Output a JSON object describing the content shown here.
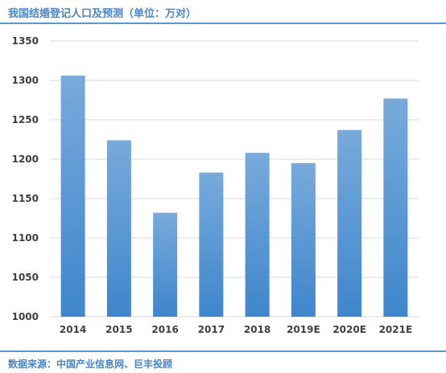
{
  "header": {
    "title": "我国结婚登记人口及预测（单位：万对）"
  },
  "footer": {
    "source": "数据来源：中国产业信息网、巨丰投顾"
  },
  "colors": {
    "accent": "#4a86c6",
    "bar_top": "#78aadb",
    "bar_bottom": "#3f86cc",
    "grid": "#d9d9d9"
  },
  "chart_data": {
    "type": "bar",
    "title": "我国结婚登记人口及预测（单位：万对）",
    "categories": [
      "2014",
      "2015",
      "2016",
      "2017",
      "2018",
      "2019E",
      "2020E",
      "2021E"
    ],
    "values": [
      1306,
      1224,
      1132,
      1183,
      1208,
      1195,
      1237,
      1277
    ],
    "ylim": [
      1000,
      1350
    ],
    "yticks": [
      1000,
      1050,
      1100,
      1150,
      1200,
      1250,
      1300,
      1350
    ],
    "grid": true,
    "legend": "none"
  }
}
